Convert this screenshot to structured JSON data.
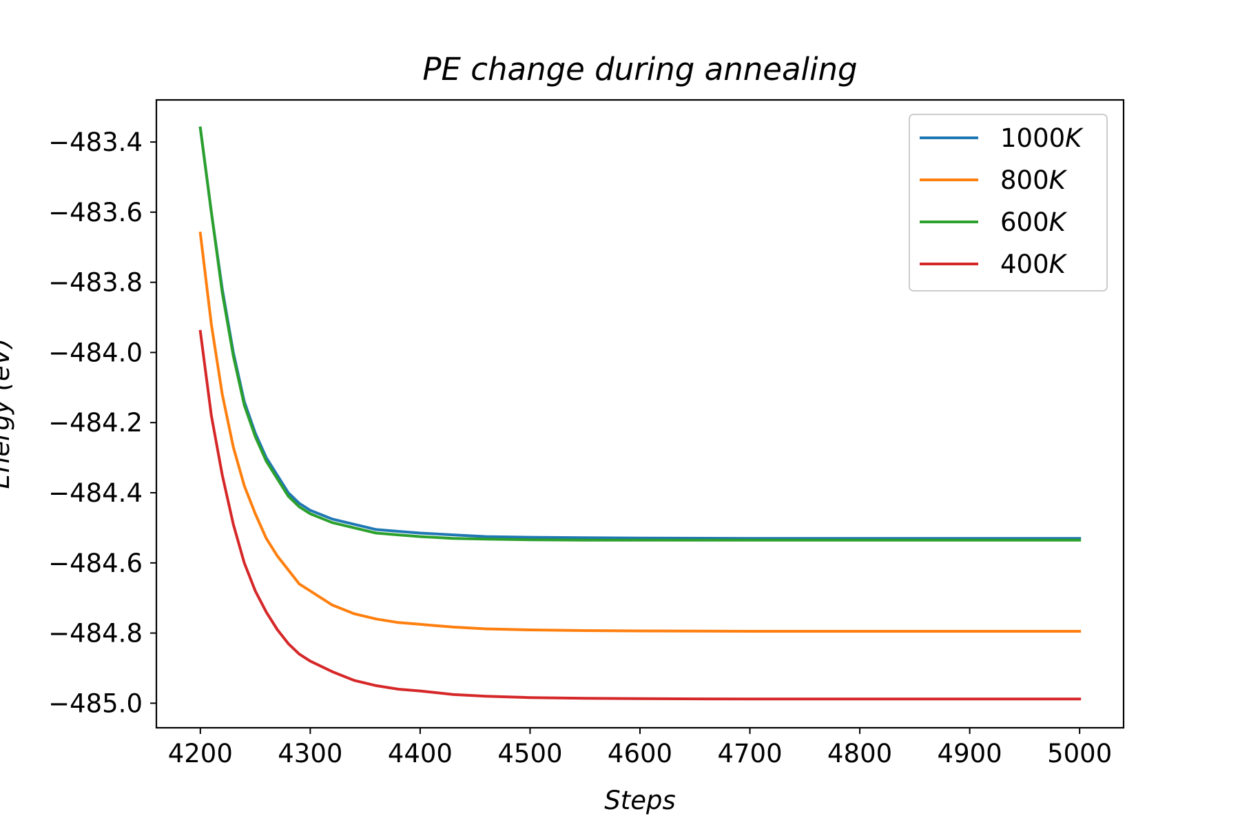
{
  "chart_data": {
    "type": "line",
    "title": "PE change during annealing",
    "xlabel": "Steps",
    "ylabel": "Energy (eV)",
    "xlim": [
      4160,
      5040
    ],
    "ylim": [
      -485.07,
      -483.28
    ],
    "xticks": [
      4200,
      4300,
      4400,
      4500,
      4600,
      4700,
      4800,
      4900,
      5000
    ],
    "yticks": [
      -483.4,
      -483.6,
      -483.8,
      -484.0,
      -484.2,
      -484.4,
      -484.6,
      -484.8,
      -485.0
    ],
    "ytick_labels": [
      "−483.4",
      "−483.6",
      "−483.8",
      "−484.0",
      "−484.2",
      "−484.4",
      "−484.6",
      "−484.8",
      "−485.0"
    ],
    "grid": false,
    "legend_position": "top-right",
    "series": [
      {
        "name": "1000K",
        "legend_label": "1000",
        "legend_unit": "K",
        "color": "#1f77b4",
        "x": [
          4200,
          4210,
          4220,
          4230,
          4240,
          4250,
          4260,
          4270,
          4280,
          4290,
          4300,
          4320,
          4340,
          4360,
          4380,
          4400,
          4430,
          4460,
          4500,
          4550,
          4600,
          4700,
          4800,
          4900,
          5000
        ],
        "y": [
          -483.36,
          -483.6,
          -483.82,
          -484.0,
          -484.14,
          -484.23,
          -484.3,
          -484.35,
          -484.4,
          -484.43,
          -484.45,
          -484.475,
          -484.49,
          -484.505,
          -484.51,
          -484.515,
          -484.52,
          -484.525,
          -484.527,
          -484.528,
          -484.529,
          -484.53,
          -484.53,
          -484.53,
          -484.53
        ]
      },
      {
        "name": "800K",
        "legend_label": "800",
        "legend_unit": "K",
        "color": "#ff7f0e",
        "x": [
          4200,
          4210,
          4220,
          4230,
          4240,
          4250,
          4260,
          4270,
          4280,
          4290,
          4300,
          4320,
          4340,
          4360,
          4380,
          4400,
          4430,
          4460,
          4500,
          4550,
          4600,
          4700,
          4800,
          4900,
          5000
        ],
        "y": [
          -483.66,
          -483.92,
          -484.12,
          -484.27,
          -484.38,
          -484.46,
          -484.53,
          -484.58,
          -484.62,
          -484.66,
          -484.68,
          -484.72,
          -484.745,
          -484.76,
          -484.77,
          -484.775,
          -484.783,
          -484.788,
          -484.791,
          -484.793,
          -484.794,
          -484.795,
          -484.795,
          -484.795,
          -484.795
        ]
      },
      {
        "name": "600K",
        "legend_label": "600",
        "legend_unit": "K",
        "color": "#2ca02c",
        "x": [
          4200,
          4210,
          4220,
          4230,
          4240,
          4250,
          4260,
          4270,
          4280,
          4290,
          4300,
          4320,
          4340,
          4360,
          4380,
          4400,
          4430,
          4460,
          4500,
          4550,
          4600,
          4700,
          4800,
          4900,
          5000
        ],
        "y": [
          -483.36,
          -483.6,
          -483.83,
          -484.01,
          -484.15,
          -484.24,
          -484.31,
          -484.36,
          -484.41,
          -484.44,
          -484.46,
          -484.485,
          -484.5,
          -484.515,
          -484.52,
          -484.525,
          -484.53,
          -484.532,
          -484.534,
          -484.535,
          -484.535,
          -484.535,
          -484.535,
          -484.535,
          -484.535
        ]
      },
      {
        "name": "400K",
        "legend_label": "400",
        "legend_unit": "K",
        "color": "#d62728",
        "x": [
          4200,
          4210,
          4220,
          4230,
          4240,
          4250,
          4260,
          4270,
          4280,
          4290,
          4300,
          4320,
          4340,
          4360,
          4380,
          4400,
          4430,
          4460,
          4500,
          4550,
          4600,
          4700,
          4800,
          4900,
          5000
        ],
        "y": [
          -483.94,
          -484.18,
          -484.35,
          -484.49,
          -484.6,
          -484.68,
          -484.74,
          -484.79,
          -484.83,
          -484.86,
          -484.88,
          -484.91,
          -484.935,
          -484.95,
          -484.96,
          -484.965,
          -484.975,
          -484.98,
          -484.984,
          -484.986,
          -484.987,
          -484.988,
          -484.988,
          -484.988,
          -484.988
        ]
      }
    ]
  }
}
